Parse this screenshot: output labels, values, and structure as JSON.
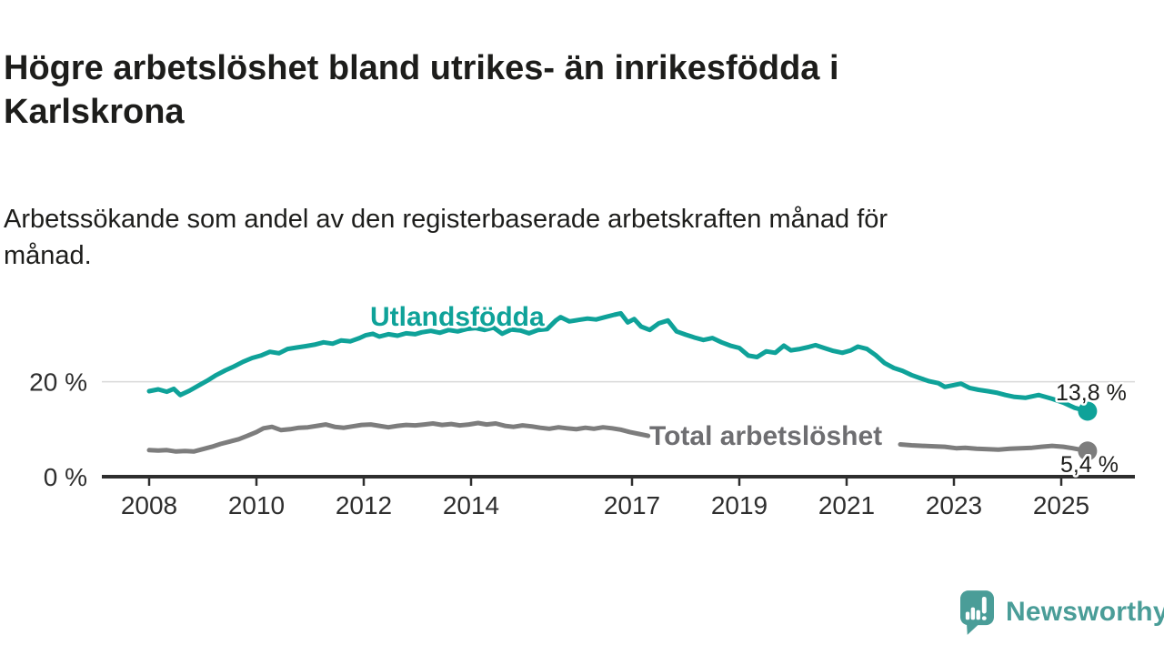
{
  "header": {
    "title_lines": [
      "Högre arbetslöshet bland utrikes- än inrikesfödda i",
      "Karlskrona"
    ],
    "subtitle_lines": [
      "Arbetssökande som andel av den registerbaserade arbetskraften månad för",
      "månad."
    ]
  },
  "footer": {
    "brand": "Newsworthy"
  },
  "colors": {
    "foreign_born_line": "#0fa299",
    "total_line": "#7d7d7d",
    "total_label": "#6e6e71",
    "axis": "#2e2e2e",
    "gridline": "#d9d9d9",
    "text_dark": "#1d1d1b",
    "brand_teal": "#4a9d98"
  },
  "chart_data": {
    "type": "line",
    "title": "Högre arbetslöshet bland utrikes- än inrikesfödda i Karlskrona",
    "subtitle": "Arbetssökande som andel av den registerbaserade arbetskraften månad för månad.",
    "unit": "%",
    "grid": "horizontal-20-only",
    "legend_position": "labels-on-lines",
    "x_axis": {
      "range_years": [
        2007.1,
        2026.3
      ],
      "ticks": [
        {
          "year": 2008,
          "label": "2008"
        },
        {
          "year": 2010,
          "label": "2010"
        },
        {
          "year": 2012,
          "label": "2012"
        },
        {
          "year": 2014,
          "label": "2014"
        },
        {
          "year": 2017,
          "label": "2017"
        },
        {
          "year": 2019,
          "label": "2019"
        },
        {
          "year": 2021,
          "label": "2021"
        },
        {
          "year": 2023,
          "label": "2023"
        },
        {
          "year": 2025,
          "label": "2025"
        }
      ]
    },
    "y_axis": {
      "range": [
        0,
        37
      ],
      "ticks": [
        {
          "value": 20,
          "label": "20 %",
          "grid": true
        },
        {
          "value": 0,
          "label": "0 %",
          "grid": false
        }
      ]
    },
    "series": [
      {
        "id": "utlandsfodda",
        "name": "Utlandsfödda",
        "color": "#0fa299",
        "end": {
          "value": 13.8,
          "label": "13,8 %"
        },
        "segments": [
          [
            [
              2008.0,
              18.0
            ],
            [
              2008.17,
              18.4
            ],
            [
              2008.33,
              17.9
            ],
            [
              2008.46,
              18.5
            ],
            [
              2008.58,
              17.2
            ],
            [
              2008.75,
              18.1
            ],
            [
              2008.92,
              19.2
            ],
            [
              2009.08,
              20.2
            ],
            [
              2009.25,
              21.4
            ],
            [
              2009.42,
              22.4
            ],
            [
              2009.58,
              23.2
            ],
            [
              2009.75,
              24.2
            ],
            [
              2009.92,
              25.0
            ],
            [
              2010.08,
              25.5
            ],
            [
              2010.25,
              26.3
            ],
            [
              2010.42,
              26.0
            ],
            [
              2010.58,
              26.9
            ],
            [
              2010.75,
              27.2
            ],
            [
              2010.92,
              27.5
            ],
            [
              2011.08,
              27.8
            ],
            [
              2011.25,
              28.3
            ],
            [
              2011.42,
              28.0
            ],
            [
              2011.58,
              28.7
            ],
            [
              2011.75,
              28.5
            ],
            [
              2011.92,
              29.2
            ],
            [
              2012.04,
              29.8
            ],
            [
              2012.17,
              30.1
            ],
            [
              2012.29,
              29.5
            ],
            [
              2012.46,
              30.0
            ],
            [
              2012.63,
              29.7
            ],
            [
              2012.79,
              30.2
            ],
            [
              2012.96,
              30.0
            ],
            [
              2013.08,
              30.4
            ],
            [
              2013.25,
              30.7
            ],
            [
              2013.42,
              30.3
            ],
            [
              2013.58,
              30.9
            ],
            [
              2013.75,
              30.6
            ],
            [
              2013.92,
              31.1
            ],
            [
              2014.08,
              31.3
            ],
            [
              2014.25,
              30.9
            ],
            [
              2014.42,
              31.4
            ],
            [
              2014.58,
              30.1
            ],
            [
              2014.75,
              31.0
            ],
            [
              2014.92,
              30.8
            ],
            [
              2015.08,
              30.2
            ],
            [
              2015.25,
              30.9
            ],
            [
              2015.42,
              31.1
            ],
            [
              2015.58,
              32.9
            ],
            [
              2015.67,
              33.6
            ],
            [
              2015.83,
              32.7
            ],
            [
              2016.0,
              33.0
            ],
            [
              2016.17,
              33.3
            ],
            [
              2016.33,
              33.1
            ],
            [
              2016.5,
              33.6
            ],
            [
              2016.67,
              34.1
            ],
            [
              2016.79,
              34.4
            ],
            [
              2016.92,
              32.5
            ],
            [
              2017.04,
              33.2
            ],
            [
              2017.17,
              31.6
            ],
            [
              2017.33,
              30.9
            ],
            [
              2017.5,
              32.3
            ],
            [
              2017.67,
              32.9
            ],
            [
              2017.83,
              30.6
            ],
            [
              2018.0,
              29.9
            ],
            [
              2018.17,
              29.3
            ],
            [
              2018.33,
              28.8
            ],
            [
              2018.5,
              29.2
            ],
            [
              2018.67,
              28.3
            ],
            [
              2018.83,
              27.6
            ],
            [
              2019.0,
              27.1
            ],
            [
              2019.17,
              25.5
            ],
            [
              2019.33,
              25.2
            ],
            [
              2019.5,
              26.4
            ],
            [
              2019.67,
              26.1
            ],
            [
              2019.83,
              27.6
            ],
            [
              2019.96,
              26.6
            ],
            [
              2020.13,
              26.9
            ],
            [
              2020.29,
              27.3
            ],
            [
              2020.42,
              27.7
            ],
            [
              2020.58,
              27.1
            ],
            [
              2020.75,
              26.5
            ],
            [
              2020.92,
              26.1
            ],
            [
              2021.08,
              26.6
            ],
            [
              2021.21,
              27.4
            ],
            [
              2021.38,
              26.9
            ],
            [
              2021.54,
              25.6
            ],
            [
              2021.71,
              23.9
            ],
            [
              2021.88,
              22.9
            ],
            [
              2022.04,
              22.3
            ],
            [
              2022.21,
              21.4
            ],
            [
              2022.38,
              20.7
            ],
            [
              2022.54,
              20.1
            ],
            [
              2022.71,
              19.7
            ],
            [
              2022.83,
              18.9
            ],
            [
              2023.0,
              19.3
            ],
            [
              2023.13,
              19.6
            ],
            [
              2023.29,
              18.7
            ],
            [
              2023.46,
              18.3
            ],
            [
              2023.63,
              18.0
            ],
            [
              2023.79,
              17.7
            ],
            [
              2023.96,
              17.2
            ],
            [
              2024.13,
              16.8
            ],
            [
              2024.33,
              16.6
            ],
            [
              2024.58,
              17.2
            ],
            [
              2024.83,
              16.4
            ],
            [
              2025.04,
              15.6
            ],
            [
              2025.25,
              14.5
            ],
            [
              2025.49,
              13.8
            ]
          ]
        ]
      },
      {
        "id": "total",
        "name": "Total arbetslöshet",
        "color": "#7d7d7d",
        "label_color": "#6e6e71",
        "end": {
          "value": 5.4,
          "label": "5,4 %"
        },
        "segments": [
          [
            [
              2008.0,
              5.6
            ],
            [
              2008.17,
              5.5
            ],
            [
              2008.33,
              5.6
            ],
            [
              2008.5,
              5.3
            ],
            [
              2008.67,
              5.4
            ],
            [
              2008.83,
              5.3
            ],
            [
              2009.0,
              5.8
            ],
            [
              2009.17,
              6.3
            ],
            [
              2009.33,
              6.9
            ],
            [
              2009.5,
              7.4
            ],
            [
              2009.67,
              7.9
            ],
            [
              2009.83,
              8.6
            ],
            [
              2010.0,
              9.4
            ],
            [
              2010.13,
              10.2
            ],
            [
              2010.29,
              10.5
            ],
            [
              2010.46,
              9.8
            ],
            [
              2010.63,
              10.0
            ],
            [
              2010.79,
              10.3
            ],
            [
              2010.96,
              10.4
            ],
            [
              2011.13,
              10.7
            ],
            [
              2011.29,
              11.0
            ],
            [
              2011.46,
              10.5
            ],
            [
              2011.63,
              10.3
            ],
            [
              2011.79,
              10.6
            ],
            [
              2011.96,
              10.9
            ],
            [
              2012.13,
              11.0
            ],
            [
              2012.29,
              10.7
            ],
            [
              2012.46,
              10.4
            ],
            [
              2012.63,
              10.7
            ],
            [
              2012.79,
              10.9
            ],
            [
              2012.96,
              10.8
            ],
            [
              2013.13,
              11.0
            ],
            [
              2013.29,
              11.2
            ],
            [
              2013.46,
              10.9
            ],
            [
              2013.63,
              11.1
            ],
            [
              2013.79,
              10.8
            ],
            [
              2013.96,
              11.0
            ],
            [
              2014.13,
              11.3
            ],
            [
              2014.29,
              11.0
            ],
            [
              2014.46,
              11.2
            ],
            [
              2014.63,
              10.7
            ],
            [
              2014.79,
              10.5
            ],
            [
              2014.96,
              10.8
            ],
            [
              2015.13,
              10.6
            ],
            [
              2015.29,
              10.3
            ],
            [
              2015.46,
              10.1
            ],
            [
              2015.63,
              10.4
            ],
            [
              2015.79,
              10.2
            ],
            [
              2015.96,
              10.0
            ],
            [
              2016.13,
              10.3
            ],
            [
              2016.29,
              10.1
            ],
            [
              2016.46,
              10.4
            ],
            [
              2016.63,
              10.2
            ],
            [
              2016.79,
              9.9
            ],
            [
              2016.96,
              9.4
            ],
            [
              2017.13,
              9.0
            ],
            [
              2017.3,
              8.6
            ]
          ],
          [
            [
              2022.0,
              6.8
            ],
            [
              2022.21,
              6.6
            ],
            [
              2022.42,
              6.5
            ],
            [
              2022.63,
              6.4
            ],
            [
              2022.83,
              6.3
            ],
            [
              2023.04,
              6.0
            ],
            [
              2023.21,
              6.1
            ],
            [
              2023.42,
              5.9
            ],
            [
              2023.63,
              5.8
            ],
            [
              2023.83,
              5.7
            ],
            [
              2024.04,
              5.9
            ],
            [
              2024.25,
              6.0
            ],
            [
              2024.46,
              6.1
            ],
            [
              2024.63,
              6.3
            ],
            [
              2024.83,
              6.5
            ],
            [
              2025.04,
              6.3
            ],
            [
              2025.21,
              6.0
            ],
            [
              2025.35,
              5.7
            ],
            [
              2025.49,
              5.4
            ]
          ]
        ]
      }
    ]
  }
}
